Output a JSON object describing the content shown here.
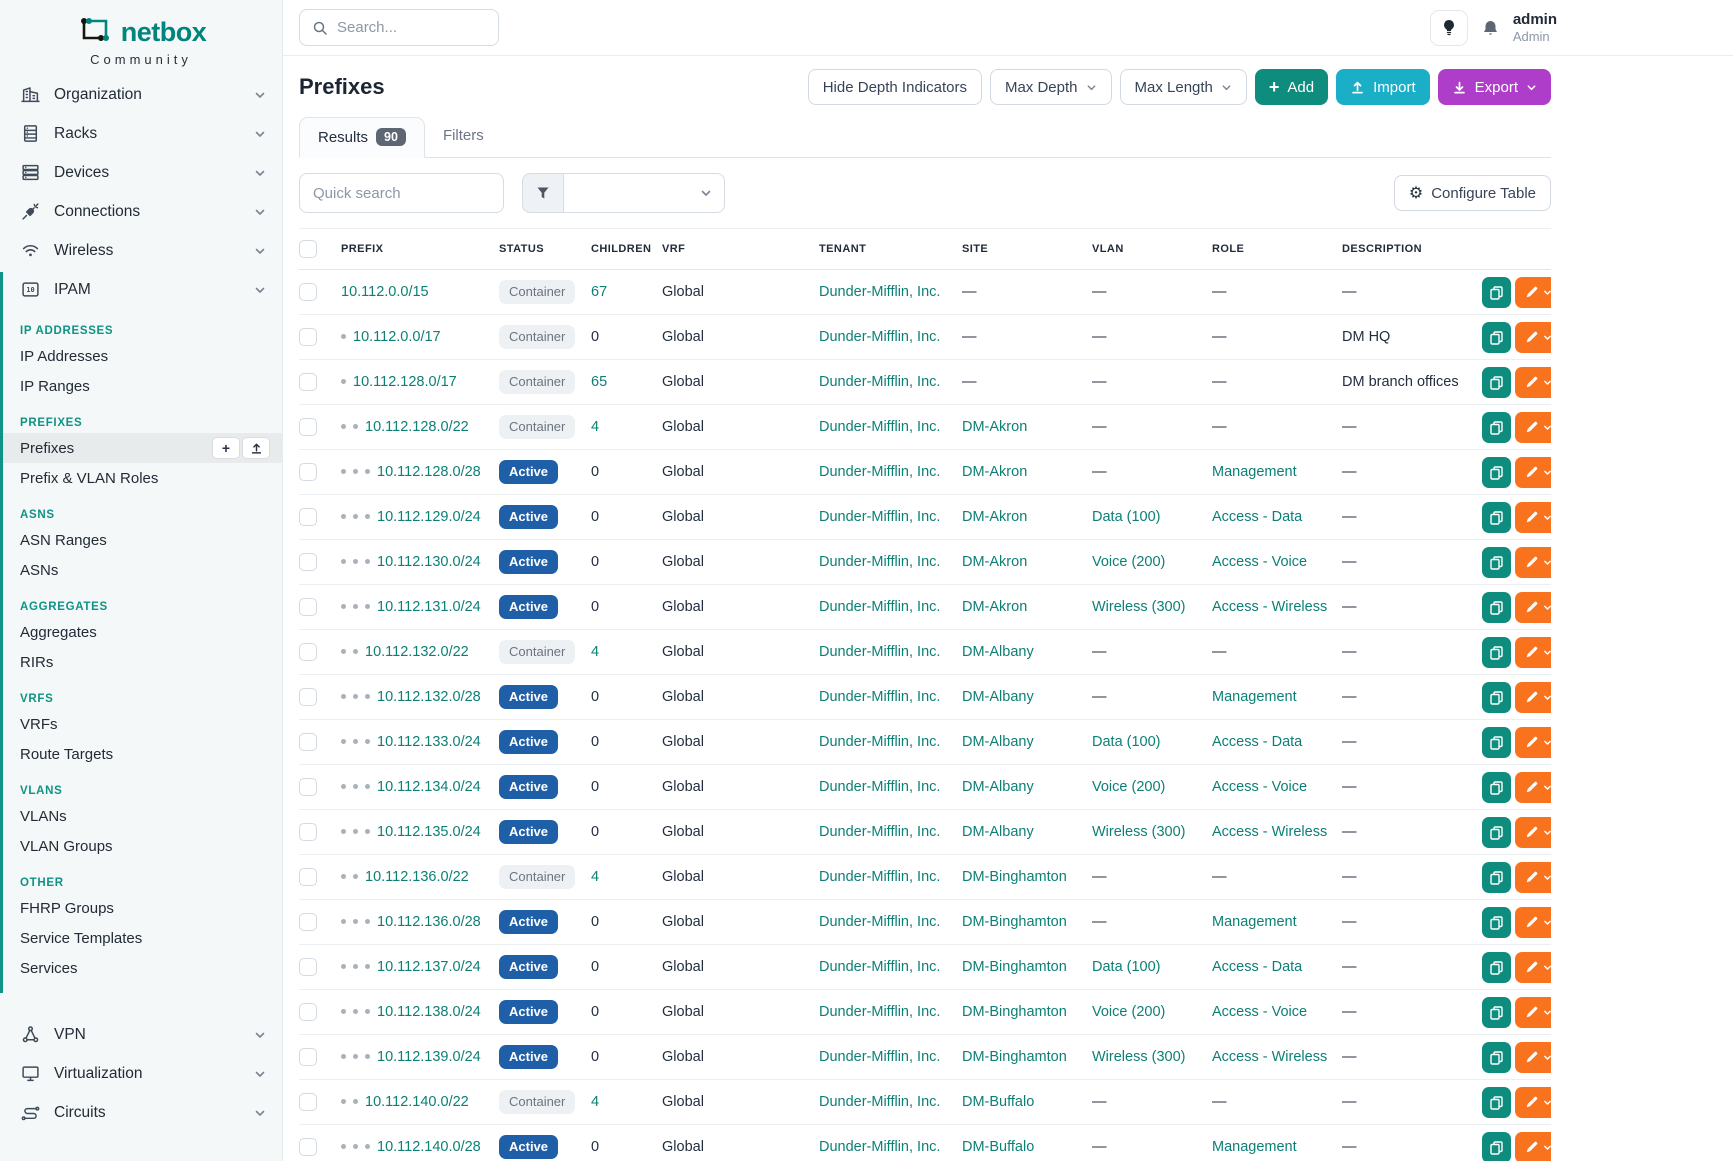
{
  "brand": {
    "name": "netbox",
    "subtitle": "Community"
  },
  "topbar": {
    "search_placeholder": "Search...",
    "username": "admin",
    "role": "Admin"
  },
  "sidebar": {
    "top_items": [
      {
        "label": "Organization",
        "icon": "building-icon"
      },
      {
        "label": "Racks",
        "icon": "rack-icon"
      },
      {
        "label": "Devices",
        "icon": "devices-icon"
      },
      {
        "label": "Connections",
        "icon": "connections-icon"
      },
      {
        "label": "Wireless",
        "icon": "wireless-icon"
      }
    ],
    "ipam_item": {
      "label": "IPAM",
      "icon": "ipam-icon"
    },
    "ipam_sections": [
      {
        "header": "IP ADDRESSES",
        "items": [
          {
            "label": "IP Addresses"
          },
          {
            "label": "IP Ranges"
          }
        ]
      },
      {
        "header": "PREFIXES",
        "items": [
          {
            "label": "Prefixes",
            "active": true
          },
          {
            "label": "Prefix & VLAN Roles"
          }
        ]
      },
      {
        "header": "ASNS",
        "items": [
          {
            "label": "ASN Ranges"
          },
          {
            "label": "ASNs"
          }
        ]
      },
      {
        "header": "AGGREGATES",
        "items": [
          {
            "label": "Aggregates"
          },
          {
            "label": "RIRs"
          }
        ]
      },
      {
        "header": "VRFS",
        "items": [
          {
            "label": "VRFs"
          },
          {
            "label": "Route Targets"
          }
        ]
      },
      {
        "header": "VLANS",
        "items": [
          {
            "label": "VLANs"
          },
          {
            "label": "VLAN Groups"
          }
        ]
      },
      {
        "header": "OTHER",
        "items": [
          {
            "label": "FHRP Groups"
          },
          {
            "label": "Service Templates"
          },
          {
            "label": "Services"
          }
        ]
      }
    ],
    "bottom_items": [
      {
        "label": "VPN",
        "icon": "vpn-icon"
      },
      {
        "label": "Virtualization",
        "icon": "virtualization-icon"
      },
      {
        "label": "Circuits",
        "icon": "circuits-icon"
      }
    ]
  },
  "page": {
    "title": "Prefixes",
    "toolbar": {
      "hide_depth": "Hide Depth Indicators",
      "max_depth": "Max Depth",
      "max_length": "Max Length",
      "add": "Add",
      "import": "Import",
      "export": "Export"
    },
    "tabs": [
      {
        "label": "Results",
        "badge": "90",
        "active": true
      },
      {
        "label": "Filters"
      }
    ],
    "quick_search_placeholder": "Quick search",
    "configure_table": "Configure Table"
  },
  "table": {
    "columns": [
      "PREFIX",
      "STATUS",
      "CHILDREN",
      "VRF",
      "TENANT",
      "SITE",
      "VLAN",
      "ROLE",
      "DESCRIPTION"
    ],
    "rows": [
      {
        "depth": 0,
        "prefix": "10.112.0.0/15",
        "status": "Container",
        "children": "67",
        "vrf": "Global",
        "tenant": "Dunder-Mifflin, Inc.",
        "site": "—",
        "vlan": "—",
        "role": "—",
        "description": "—"
      },
      {
        "depth": 1,
        "prefix": "10.112.0.0/17",
        "status": "Container",
        "children": "0",
        "vrf": "Global",
        "tenant": "Dunder-Mifflin, Inc.",
        "site": "—",
        "vlan": "—",
        "role": "—",
        "description": "DM HQ"
      },
      {
        "depth": 1,
        "prefix": "10.112.128.0/17",
        "status": "Container",
        "children": "65",
        "vrf": "Global",
        "tenant": "Dunder-Mifflin, Inc.",
        "site": "—",
        "vlan": "—",
        "role": "—",
        "description": "DM branch offices"
      },
      {
        "depth": 2,
        "prefix": "10.112.128.0/22",
        "status": "Container",
        "children": "4",
        "vrf": "Global",
        "tenant": "Dunder-Mifflin, Inc.",
        "site": "DM-Akron",
        "vlan": "—",
        "role": "—",
        "description": "—"
      },
      {
        "depth": 3,
        "prefix": "10.112.128.0/28",
        "status": "Active",
        "children": "0",
        "vrf": "Global",
        "tenant": "Dunder-Mifflin, Inc.",
        "site": "DM-Akron",
        "vlan": "—",
        "role": "Management",
        "description": "—"
      },
      {
        "depth": 3,
        "prefix": "10.112.129.0/24",
        "status": "Active",
        "children": "0",
        "vrf": "Global",
        "tenant": "Dunder-Mifflin, Inc.",
        "site": "DM-Akron",
        "vlan": "Data (100)",
        "role": "Access - Data",
        "description": "—"
      },
      {
        "depth": 3,
        "prefix": "10.112.130.0/24",
        "status": "Active",
        "children": "0",
        "vrf": "Global",
        "tenant": "Dunder-Mifflin, Inc.",
        "site": "DM-Akron",
        "vlan": "Voice (200)",
        "role": "Access - Voice",
        "description": "—"
      },
      {
        "depth": 3,
        "prefix": "10.112.131.0/24",
        "status": "Active",
        "children": "0",
        "vrf": "Global",
        "tenant": "Dunder-Mifflin, Inc.",
        "site": "DM-Akron",
        "vlan": "Wireless (300)",
        "role": "Access - Wireless",
        "description": "—"
      },
      {
        "depth": 2,
        "prefix": "10.112.132.0/22",
        "status": "Container",
        "children": "4",
        "vrf": "Global",
        "tenant": "Dunder-Mifflin, Inc.",
        "site": "DM-Albany",
        "vlan": "—",
        "role": "—",
        "description": "—"
      },
      {
        "depth": 3,
        "prefix": "10.112.132.0/28",
        "status": "Active",
        "children": "0",
        "vrf": "Global",
        "tenant": "Dunder-Mifflin, Inc.",
        "site": "DM-Albany",
        "vlan": "—",
        "role": "Management",
        "description": "—"
      },
      {
        "depth": 3,
        "prefix": "10.112.133.0/24",
        "status": "Active",
        "children": "0",
        "vrf": "Global",
        "tenant": "Dunder-Mifflin, Inc.",
        "site": "DM-Albany",
        "vlan": "Data (100)",
        "role": "Access - Data",
        "description": "—"
      },
      {
        "depth": 3,
        "prefix": "10.112.134.0/24",
        "status": "Active",
        "children": "0",
        "vrf": "Global",
        "tenant": "Dunder-Mifflin, Inc.",
        "site": "DM-Albany",
        "vlan": "Voice (200)",
        "role": "Access - Voice",
        "description": "—"
      },
      {
        "depth": 3,
        "prefix": "10.112.135.0/24",
        "status": "Active",
        "children": "0",
        "vrf": "Global",
        "tenant": "Dunder-Mifflin, Inc.",
        "site": "DM-Albany",
        "vlan": "Wireless (300)",
        "role": "Access - Wireless",
        "description": "—"
      },
      {
        "depth": 2,
        "prefix": "10.112.136.0/22",
        "status": "Container",
        "children": "4",
        "vrf": "Global",
        "tenant": "Dunder-Mifflin, Inc.",
        "site": "DM-Binghamton",
        "vlan": "—",
        "role": "—",
        "description": "—"
      },
      {
        "depth": 3,
        "prefix": "10.112.136.0/28",
        "status": "Active",
        "children": "0",
        "vrf": "Global",
        "tenant": "Dunder-Mifflin, Inc.",
        "site": "DM-Binghamton",
        "vlan": "—",
        "role": "Management",
        "description": "—"
      },
      {
        "depth": 3,
        "prefix": "10.112.137.0/24",
        "status": "Active",
        "children": "0",
        "vrf": "Global",
        "tenant": "Dunder-Mifflin, Inc.",
        "site": "DM-Binghamton",
        "vlan": "Data (100)",
        "role": "Access - Data",
        "description": "—"
      },
      {
        "depth": 3,
        "prefix": "10.112.138.0/24",
        "status": "Active",
        "children": "0",
        "vrf": "Global",
        "tenant": "Dunder-Mifflin, Inc.",
        "site": "DM-Binghamton",
        "vlan": "Voice (200)",
        "role": "Access - Voice",
        "description": "—"
      },
      {
        "depth": 3,
        "prefix": "10.112.139.0/24",
        "status": "Active",
        "children": "0",
        "vrf": "Global",
        "tenant": "Dunder-Mifflin, Inc.",
        "site": "DM-Binghamton",
        "vlan": "Wireless (300)",
        "role": "Access - Wireless",
        "description": "—"
      },
      {
        "depth": 2,
        "prefix": "10.112.140.0/22",
        "status": "Container",
        "children": "4",
        "vrf": "Global",
        "tenant": "Dunder-Mifflin, Inc.",
        "site": "DM-Buffalo",
        "vlan": "—",
        "role": "—",
        "description": "—"
      },
      {
        "depth": 3,
        "prefix": "10.112.140.0/28",
        "status": "Active",
        "children": "0",
        "vrf": "Global",
        "tenant": "Dunder-Mifflin, Inc.",
        "site": "DM-Buffalo",
        "vlan": "—",
        "role": "Management",
        "description": "—"
      }
    ]
  },
  "colors": {
    "brand_teal": "#00857e",
    "accent_teal": "#0e9384",
    "link_teal": "#0d8076",
    "active_badge_blue": "#1e5fa8",
    "add_green": "#0e8c7d",
    "import_cyan": "#1aaec7",
    "export_purple": "#ae3ec9",
    "edit_orange": "#f9731f"
  }
}
